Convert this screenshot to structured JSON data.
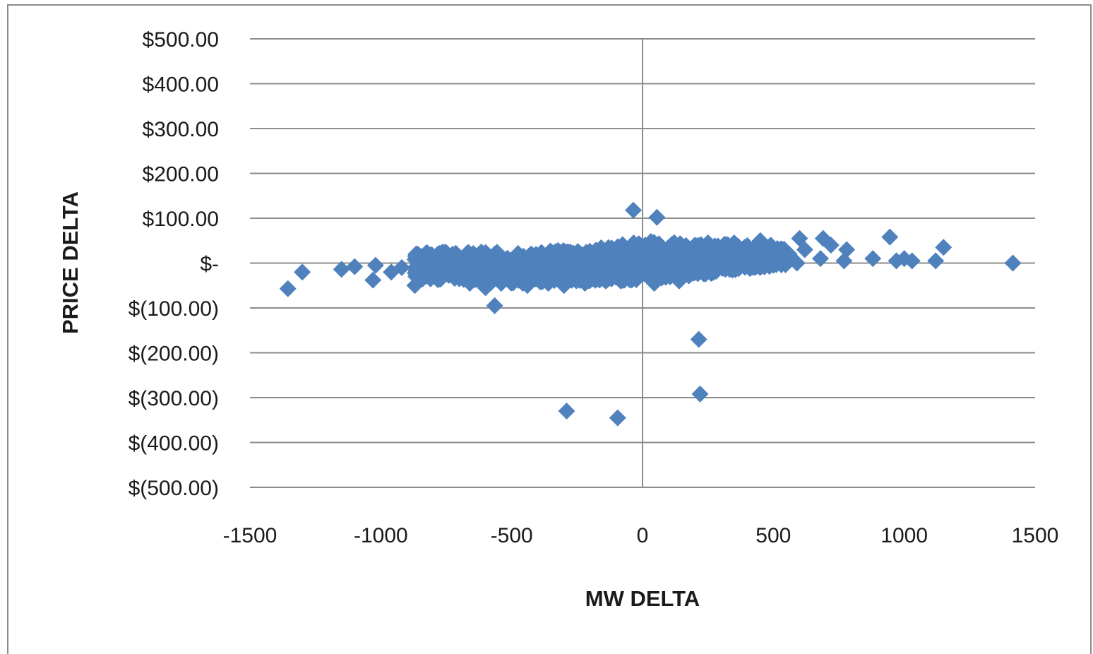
{
  "chart_data": {
    "type": "scatter",
    "xlabel": "MW DELTA",
    "ylabel": "PRICE DELTA",
    "xlim": [
      -1500,
      1500
    ],
    "ylim": [
      -500,
      500
    ],
    "x_ticks": [
      -1500,
      -1000,
      -500,
      0,
      500,
      1000,
      1500
    ],
    "x_tick_labels": [
      "-1500",
      "-1000",
      "-500",
      "0",
      "500",
      "1000",
      "1500"
    ],
    "y_ticks": [
      500,
      400,
      300,
      200,
      100,
      0,
      -100,
      -200,
      -300,
      -400,
      -500
    ],
    "y_tick_labels": [
      "$500.00",
      "$400.00",
      "$300.00",
      "$200.00",
      "$100.00",
      "$-",
      "$(100.00)",
      "$(200.00)",
      "$(300.00)",
      "$(400.00)",
      "$(500.00)"
    ],
    "gridlines": "horizontal",
    "legend": "none",
    "marker": "diamond",
    "marker_color": "#4f81bd",
    "series": [
      {
        "points": [
          [
            -1355,
            -57
          ],
          [
            -1300,
            -20
          ],
          [
            -1150,
            -14
          ],
          [
            -1100,
            -8
          ],
          [
            -1030,
            -38
          ],
          [
            -1020,
            -5
          ],
          [
            -960,
            -20
          ],
          [
            -920,
            -10
          ],
          [
            -870,
            -50
          ],
          [
            -840,
            -35
          ],
          [
            -810,
            -15
          ],
          [
            -790,
            -30
          ],
          [
            -760,
            -20
          ],
          [
            -730,
            -10
          ],
          [
            -700,
            -35
          ],
          [
            -680,
            -15
          ],
          [
            -660,
            -45
          ],
          [
            -640,
            -25
          ],
          [
            -620,
            -20
          ],
          [
            -600,
            -55
          ],
          [
            -580,
            -30
          ],
          [
            -565,
            -95
          ],
          [
            -555,
            -15
          ],
          [
            -540,
            -45
          ],
          [
            -520,
            -10
          ],
          [
            -500,
            -40
          ],
          [
            -480,
            -30
          ],
          [
            -460,
            -20
          ],
          [
            -440,
            -50
          ],
          [
            -420,
            -10
          ],
          [
            -400,
            -35
          ],
          [
            -380,
            -20
          ],
          [
            -360,
            -45
          ],
          [
            -340,
            -5
          ],
          [
            -320,
            -30
          ],
          [
            -300,
            -50
          ],
          [
            -290,
            -330
          ],
          [
            -280,
            -15
          ],
          [
            -260,
            -35
          ],
          [
            -240,
            -10
          ],
          [
            -220,
            -45
          ],
          [
            -200,
            -5
          ],
          [
            -180,
            -30
          ],
          [
            -160,
            -15
          ],
          [
            -150,
            20
          ],
          [
            -140,
            -40
          ],
          [
            -120,
            10
          ],
          [
            -100,
            -20
          ],
          [
            -95,
            -345
          ],
          [
            -80,
            30
          ],
          [
            -60,
            -10
          ],
          [
            -40,
            -35
          ],
          [
            -35,
            118
          ],
          [
            -20,
            15
          ],
          [
            0,
            -20
          ],
          [
            10,
            40
          ],
          [
            20,
            -5
          ],
          [
            30,
            25
          ],
          [
            45,
            -45
          ],
          [
            55,
            102
          ],
          [
            60,
            10
          ],
          [
            80,
            -25
          ],
          [
            100,
            35
          ],
          [
            120,
            5
          ],
          [
            140,
            -40
          ],
          [
            160,
            20
          ],
          [
            180,
            -10
          ],
          [
            200,
            40
          ],
          [
            215,
            -170
          ],
          [
            220,
            -292
          ],
          [
            230,
            15
          ],
          [
            250,
            45
          ],
          [
            270,
            5
          ],
          [
            290,
            30
          ],
          [
            310,
            -5
          ],
          [
            330,
            20
          ],
          [
            350,
            45
          ],
          [
            370,
            10
          ],
          [
            390,
            35
          ],
          [
            410,
            0
          ],
          [
            430,
            25
          ],
          [
            450,
            50
          ],
          [
            470,
            15
          ],
          [
            490,
            40
          ],
          [
            510,
            5
          ],
          [
            530,
            30
          ],
          [
            560,
            20
          ],
          [
            590,
            0
          ],
          [
            600,
            55
          ],
          [
            620,
            30
          ],
          [
            680,
            10
          ],
          [
            690,
            55
          ],
          [
            720,
            40
          ],
          [
            770,
            5
          ],
          [
            780,
            30
          ],
          [
            880,
            10
          ],
          [
            945,
            58
          ],
          [
            970,
            5
          ],
          [
            1000,
            10
          ],
          [
            1030,
            5
          ],
          [
            1120,
            5
          ],
          [
            1150,
            35
          ],
          [
            1415,
            0
          ]
        ]
      }
    ],
    "cloud_band": [
      [
        -870,
        0,
        -30,
        20
      ],
      [
        -820,
        0,
        -40,
        25
      ],
      [
        -700,
        0,
        -35,
        25
      ],
      [
        -600,
        -5,
        -45,
        25
      ],
      [
        -450,
        -5,
        -45,
        22
      ],
      [
        -350,
        -5,
        -40,
        28
      ],
      [
        -250,
        -5,
        -40,
        30
      ],
      [
        -150,
        0,
        -40,
        38
      ],
      [
        -50,
        0,
        -40,
        45
      ],
      [
        50,
        10,
        -35,
        50
      ],
      [
        150,
        15,
        -30,
        45
      ],
      [
        250,
        20,
        -25,
        42
      ],
      [
        350,
        22,
        -15,
        42
      ],
      [
        450,
        25,
        -10,
        40
      ],
      [
        550,
        20,
        -5,
        30
      ]
    ]
  }
}
